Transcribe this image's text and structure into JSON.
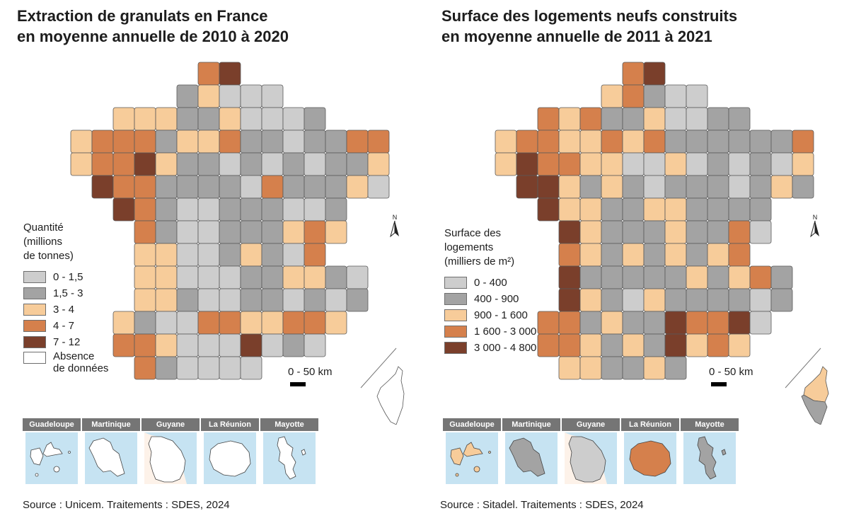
{
  "left": {
    "title_line1": "Extraction de granulats en France",
    "title_line2": "en moyenne annuelle de 2010 à 2020",
    "legend": {
      "title": [
        "Quantité",
        "(millions",
        "de tonnes)"
      ],
      "items": [
        {
          "label": "0 - 1,5",
          "color": "#cdcdcd"
        },
        {
          "label": "1,5 - 3",
          "color": "#a3a3a3"
        },
        {
          "label": "3 - 4",
          "color": "#f7cc9a"
        },
        {
          "label": "4 - 7",
          "color": "#d5804c"
        },
        {
          "label": "7 - 12",
          "color": "#7a3f2b"
        },
        {
          "label1": "Absence",
          "label2": "de données",
          "color": "#ffffff"
        }
      ]
    },
    "scale_label": "0 - 50 km",
    "north_label": "N",
    "source": "Source : Unicem. Traitements : SDES, 2024",
    "insets": [
      {
        "label": "Guadeloupe",
        "fill": "#ffffff"
      },
      {
        "label": "Martinique",
        "fill": "#ffffff"
      },
      {
        "label": "Guyane",
        "fill": "#ffffff"
      },
      {
        "label": "La Réunion",
        "fill": "#ffffff"
      },
      {
        "label": "Mayotte",
        "fill": "#ffffff"
      }
    ]
  },
  "right": {
    "title_line1": "Surface des logements neufs construits",
    "title_line2": "en moyenne annuelle de 2011 à 2021",
    "legend": {
      "title": [
        "Surface des",
        "logements",
        "(milliers de m²)"
      ],
      "items": [
        {
          "label": "0 - 400",
          "color": "#cdcdcd"
        },
        {
          "label": "400 - 900",
          "color": "#a3a3a3"
        },
        {
          "label": "900 - 1 600",
          "color": "#f7cc9a"
        },
        {
          "label": "1 600 - 3 000",
          "color": "#d5804c"
        },
        {
          "label": "3 000 - 4 800",
          "color": "#7a3f2b"
        }
      ]
    },
    "scale_label": "0 - 50 km",
    "north_label": "N",
    "source": "Source : Sitadel. Traitements : SDES, 2024",
    "insets": [
      {
        "label": "Guadeloupe",
        "fill": "#f7cc9a"
      },
      {
        "label": "Martinique",
        "fill": "#a3a3a3"
      },
      {
        "label": "Guyane",
        "fill": "#cdcdcd"
      },
      {
        "label": "La Réunion",
        "fill": "#d5804c"
      },
      {
        "label": "Mayotte",
        "fill": "#a3a3a3"
      }
    ]
  },
  "palette": [
    "#cdcdcd",
    "#a3a3a3",
    "#f7cc9a",
    "#d5804c",
    "#7a3f2b"
  ],
  "grid": {
    "left": [
      "......45........",
      ".....23111......",
      "..3332231112....",
      "344423342212244.",
      "344532212121223.",
      ".54422221422231.",
      "..54211222112....",
      "...4211222343...",
      "...331123214....",
      "...33111223321..",
      "...33211221212..",
      "..32114433443...",
      "..4431115121....",
      "...421111......."
    ],
    "right": [
      "......45........",
      ".....34211......",
      "..4342231122....",
      "344334342222224.",
      "354433113121213.",
      ".55323212221232.",
      "..53322332222....",
      "...5322232241...",
      "...432323234....",
      "...52222232342..",
      "...53213222212..",
      "..44232254451...",
      "..4432325343....",
      "...332232......."
    ]
  }
}
